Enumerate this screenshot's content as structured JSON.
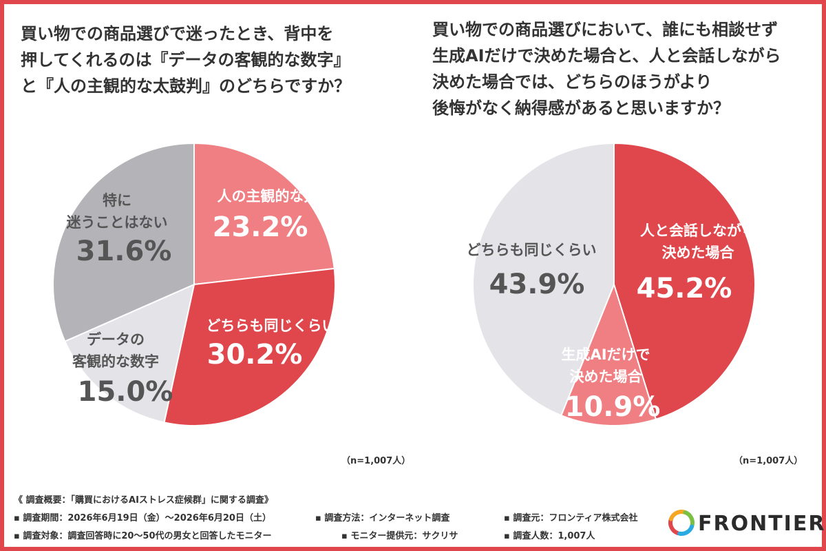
{
  "chart_data": [
    {
      "type": "pie",
      "title_lines": [
        "買い物での商品選びで迷ったとき、背中を",
        "押してくれるのは『データの客観的な数字』",
        "と『人の主観的な太鼓判』のどちらですか？"
      ],
      "start_angle_deg": 0,
      "slices": [
        {
          "label_lines": [
            "人の主観的な太鼓判"
          ],
          "value": 23.2,
          "value_text": "23.2%",
          "color": "#f07f83",
          "text_color": "#ffffff"
        },
        {
          "label_lines": [
            "どちらも同じくらい"
          ],
          "value": 30.2,
          "value_text": "30.2%",
          "color": "#e0474c",
          "text_color": "#ffffff"
        },
        {
          "label_lines": [
            "データの",
            "客観的な数字"
          ],
          "value": 15.0,
          "value_text": "15.0%",
          "color": "#e4e4e8",
          "text_color": "#555555"
        },
        {
          "label_lines": [
            "特に",
            "迷うことはない"
          ],
          "value": 31.6,
          "value_text": "31.6%",
          "color": "#b4b4b8",
          "text_color": "#555555"
        }
      ],
      "note": "（n=1,007人）"
    },
    {
      "type": "pie",
      "title_lines": [
        "買い物での商品選びにおいて、誰にも相談せず",
        "生成AIだけで決めた場合と、人と会話しながら",
        "決めた場合では、どちらのほうがより",
        "後悔がなく納得感があると思いますか？"
      ],
      "start_angle_deg": 0,
      "slices": [
        {
          "label_lines": [
            "人と会話しながら",
            "決めた場合"
          ],
          "value": 45.2,
          "value_text": "45.2%",
          "color": "#e0474c",
          "text_color": "#ffffff"
        },
        {
          "label_lines": [
            "生成AIだけで",
            "決めた場合"
          ],
          "value": 10.9,
          "value_text": "10.9%",
          "color": "#f07f83",
          "text_color": "#ffffff"
        },
        {
          "label_lines": [
            "どちらも同じくらい"
          ],
          "value": 43.9,
          "value_text": "43.9%",
          "color": "#e4e4e8",
          "text_color": "#555555"
        }
      ],
      "note": "（n=1,007人）"
    }
  ],
  "footer": {
    "overview": "《 調査概要：「購買におけるAIストレス症候群」に関する調査》",
    "period": "▪ 調査期間：2026年6月19日（金）〜2026年6月20日（土）",
    "method": "▪ 調査方法：インターネット調査",
    "source": "▪ 調査元：フロンティア株式会社",
    "target": "▪ 調査対象：調査回答時に20〜50代の男女と回答したモニター",
    "provider": "▪ モニター提供元：サクリサ",
    "count": "▪ 調査人数：1,007人"
  },
  "logo": {
    "text": "FRONTIER",
    "colors": [
      "#e0474c",
      "#f5a623",
      "#7ac143",
      "#29abe2"
    ]
  }
}
